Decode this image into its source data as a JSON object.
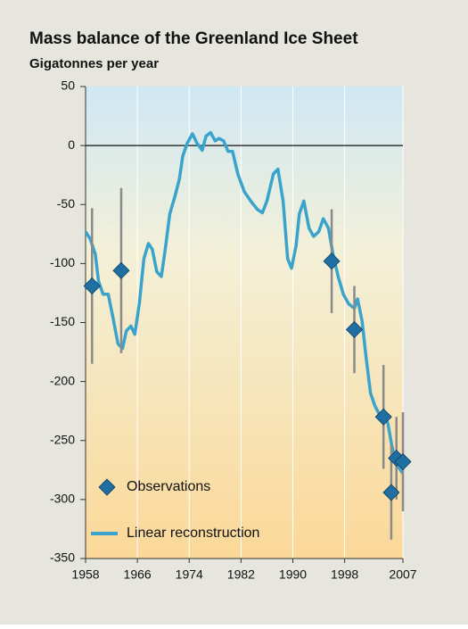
{
  "chart_data": {
    "type": "line",
    "title": "Mass balance of the Greenland Ice Sheet",
    "subtitle": "Gigatonnes per year",
    "xlim": [
      1958,
      2007
    ],
    "xticks": [
      1958,
      1966,
      1974,
      1982,
      1990,
      1998,
      2007
    ],
    "ylim": [
      -350,
      50
    ],
    "yticks": [
      50,
      0,
      -50,
      -100,
      -150,
      -200,
      -250,
      -300,
      -350
    ],
    "grid": true,
    "legend": "lower left",
    "series": [
      {
        "name": "Linear reconstruction",
        "kind": "line",
        "color": "#3aa3cc",
        "x": [
          1958,
          1958.7,
          1959.5,
          1960,
          1960.7,
          1961.5,
          1962.2,
          1963,
          1963.7,
          1964.3,
          1965,
          1965.6,
          1966.3,
          1967,
          1967.7,
          1968.3,
          1969,
          1969.7,
          1970.3,
          1971,
          1971.8,
          1972.5,
          1973,
          1973.7,
          1974.5,
          1975.2,
          1976,
          1976.6,
          1977.3,
          1978,
          1978.6,
          1979.3,
          1980,
          1980.7,
          1981.5,
          1982.5,
          1983.5,
          1984.5,
          1985.3,
          1986,
          1987,
          1987.7,
          1988.5,
          1989.2,
          1989.8,
          1990.5,
          1991,
          1991.7,
          1992.5,
          1993.2,
          1994,
          1994.7,
          1995.5,
          1996.2,
          1997,
          1997.8,
          1998.6,
          1999.5,
          2000,
          2000.7,
          2001.3,
          2002,
          2002.7,
          2003.5,
          2004.2,
          2004.7,
          2005.3,
          2006,
          2006.5,
          2007
        ],
        "values": [
          -73,
          -79,
          -92,
          -115,
          -126,
          -126,
          -145,
          -168,
          -172,
          -157,
          -153,
          -160,
          -134,
          -96,
          -83,
          -88,
          -107,
          -111,
          -88,
          -58,
          -43,
          -28,
          -9,
          2,
          10,
          2,
          -4,
          8,
          11,
          4,
          6,
          4,
          -5,
          -5,
          -24,
          -39,
          -47,
          -54,
          -57,
          -47,
          -24,
          -20,
          -47,
          -96,
          -104,
          -85,
          -58,
          -47,
          -70,
          -77,
          -73,
          -62,
          -70,
          -92,
          -111,
          -126,
          -134,
          -138,
          -130,
          -149,
          -179,
          -210,
          -221,
          -229,
          -229,
          -236,
          -255,
          -270,
          -274,
          -278
        ]
      },
      {
        "name": "Observations",
        "kind": "points",
        "color": "#1f6fa3",
        "error_color": "#8a8a8a",
        "x": [
          1959,
          1963.5,
          1996,
          1999.5,
          2004,
          2005.2,
          2006,
          2007
        ],
        "values": [
          -119,
          -106,
          -98,
          -156,
          -230,
          -294,
          -265,
          -268
        ],
        "errors": [
          66,
          70,
          44,
          37,
          44,
          40,
          35,
          42
        ]
      }
    ]
  }
}
